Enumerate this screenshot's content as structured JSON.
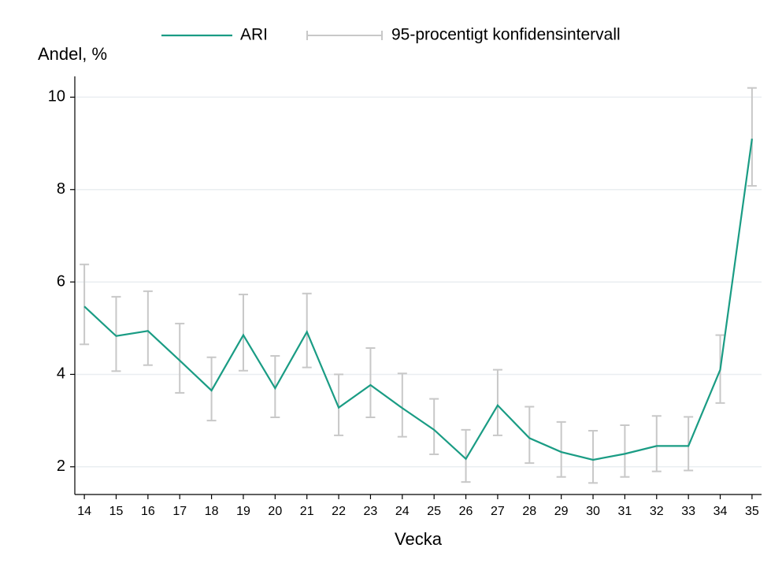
{
  "chart_data": {
    "type": "line",
    "x_label": "Vecka",
    "y_label": "Andel, %",
    "x": [
      14,
      15,
      16,
      17,
      18,
      19,
      20,
      21,
      22,
      23,
      24,
      25,
      26,
      27,
      28,
      29,
      30,
      31,
      32,
      33,
      34,
      35
    ],
    "series": [
      {
        "name": "ARI",
        "color": "#1a9c84",
        "values": [
          5.47,
          4.83,
          4.94,
          4.3,
          3.65,
          4.85,
          3.7,
          4.92,
          3.28,
          3.77,
          3.27,
          2.8,
          2.17,
          3.33,
          2.62,
          2.32,
          2.15,
          2.28,
          2.45,
          2.45,
          4.1,
          9.1
        ]
      }
    ],
    "ci": {
      "name": "95-procentigt konfidensintervall",
      "color": "#c8c8c8",
      "low": [
        4.65,
        4.07,
        4.2,
        3.6,
        3.0,
        4.08,
        3.07,
        4.15,
        2.68,
        3.07,
        2.65,
        2.27,
        1.67,
        2.68,
        2.08,
        1.78,
        1.65,
        1.78,
        1.9,
        1.92,
        3.38,
        8.08
      ],
      "high": [
        6.38,
        5.68,
        5.8,
        5.1,
        4.37,
        5.73,
        4.4,
        5.75,
        4.0,
        4.57,
        4.02,
        3.47,
        2.8,
        4.1,
        3.3,
        2.97,
        2.78,
        2.9,
        3.1,
        3.08,
        4.85,
        10.2
      ]
    },
    "xlim": [
      13.7,
      35.3
    ],
    "ylim": [
      1.4,
      10.45
    ],
    "yticks": [
      2,
      4,
      6,
      8,
      10
    ],
    "grid": true
  }
}
